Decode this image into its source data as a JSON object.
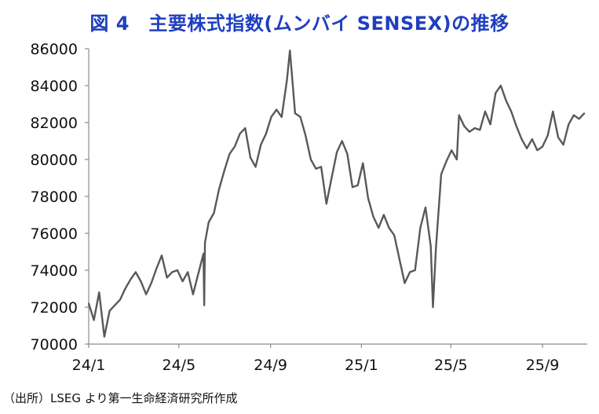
{
  "figure": {
    "title": "図 4　主要株式指数(ムンバイ SENSEX)の推移",
    "source": "（出所）LSEG より第一生命経済研究所作成"
  },
  "chart_data": {
    "type": "line",
    "ylim": [
      70000,
      86000
    ],
    "yticks": [
      "86000",
      "84000",
      "82000",
      "80000",
      "78000",
      "76000",
      "74000",
      "72000",
      "70000"
    ],
    "xticks": [
      "24/1",
      "24/5",
      "24/9",
      "25/1",
      "25/5",
      "25/9"
    ],
    "x_start": "2024-01-01",
    "x_end": "2025-10-31",
    "grid": false,
    "line_color": "#595959",
    "series": [
      {
        "x": [
          "2024-01-01",
          "2024-01-08",
          "2024-01-15",
          "2024-01-22",
          "2024-01-29",
          "2024-02-05",
          "2024-02-12",
          "2024-02-19",
          "2024-02-26",
          "2024-03-04",
          "2024-03-11",
          "2024-03-18",
          "2024-03-25",
          "2024-04-01",
          "2024-04-08",
          "2024-04-15",
          "2024-04-22",
          "2024-04-29",
          "2024-05-06",
          "2024-05-13",
          "2024-05-20",
          "2024-05-27",
          "2024-06-03",
          "2024-06-04",
          "2024-06-05",
          "2024-06-10",
          "2024-06-17",
          "2024-06-24",
          "2024-07-01",
          "2024-07-08",
          "2024-07-15",
          "2024-07-22",
          "2024-07-29",
          "2024-08-05",
          "2024-08-12",
          "2024-08-19",
          "2024-08-26",
          "2024-09-02",
          "2024-09-09",
          "2024-09-16",
          "2024-09-23",
          "2024-09-27",
          "2024-10-04",
          "2024-10-11",
          "2024-10-18",
          "2024-10-25",
          "2024-11-01",
          "2024-11-08",
          "2024-11-15",
          "2024-11-22",
          "2024-11-29",
          "2024-12-06",
          "2024-12-13",
          "2024-12-20",
          "2024-12-27",
          "2025-01-03",
          "2025-01-10",
          "2025-01-17",
          "2025-01-24",
          "2025-01-31",
          "2025-02-07",
          "2025-02-14",
          "2025-02-21",
          "2025-02-28",
          "2025-03-07",
          "2025-03-14",
          "2025-03-21",
          "2025-03-28",
          "2025-04-04",
          "2025-04-07",
          "2025-04-11",
          "2025-04-18",
          "2025-04-25",
          "2025-05-02",
          "2025-05-09",
          "2025-05-12",
          "2025-05-19",
          "2025-05-26",
          "2025-06-02",
          "2025-06-09",
          "2025-06-16",
          "2025-06-23",
          "2025-06-30",
          "2025-07-07",
          "2025-07-14",
          "2025-07-21",
          "2025-07-28",
          "2025-08-04",
          "2025-08-11",
          "2025-08-18",
          "2025-08-25",
          "2025-09-01",
          "2025-09-08",
          "2025-09-15",
          "2025-09-22",
          "2025-09-29",
          "2025-10-06",
          "2025-10-13",
          "2025-10-20",
          "2025-10-27"
        ],
        "y": [
          72200,
          71300,
          72800,
          70400,
          71800,
          72100,
          72400,
          73000,
          73500,
          73900,
          73400,
          72700,
          73300,
          74100,
          74800,
          73600,
          73900,
          74000,
          73400,
          73900,
          72700,
          73800,
          74900,
          72100,
          75500,
          76600,
          77100,
          78400,
          79400,
          80300,
          80700,
          81400,
          81700,
          80100,
          79600,
          80800,
          81400,
          82300,
          82700,
          82300,
          84300,
          85900,
          82500,
          82300,
          81300,
          80000,
          79500,
          79600,
          77600,
          79000,
          80400,
          81000,
          80300,
          78500,
          78600,
          79800,
          77900,
          76900,
          76300,
          77000,
          76300,
          75900,
          74600,
          73300,
          73900,
          74000,
          76300,
          77400,
          75300,
          72000,
          75200,
          79200,
          79900,
          80500,
          80000,
          82400,
          81800,
          81500,
          81700,
          81600,
          82600,
          81900,
          83600,
          84000,
          83200,
          82600,
          81800,
          81100,
          80600,
          81100,
          80500,
          80700,
          81300,
          82600,
          81200,
          80800,
          81900,
          82400,
          82200,
          82500
        ]
      }
    ]
  }
}
